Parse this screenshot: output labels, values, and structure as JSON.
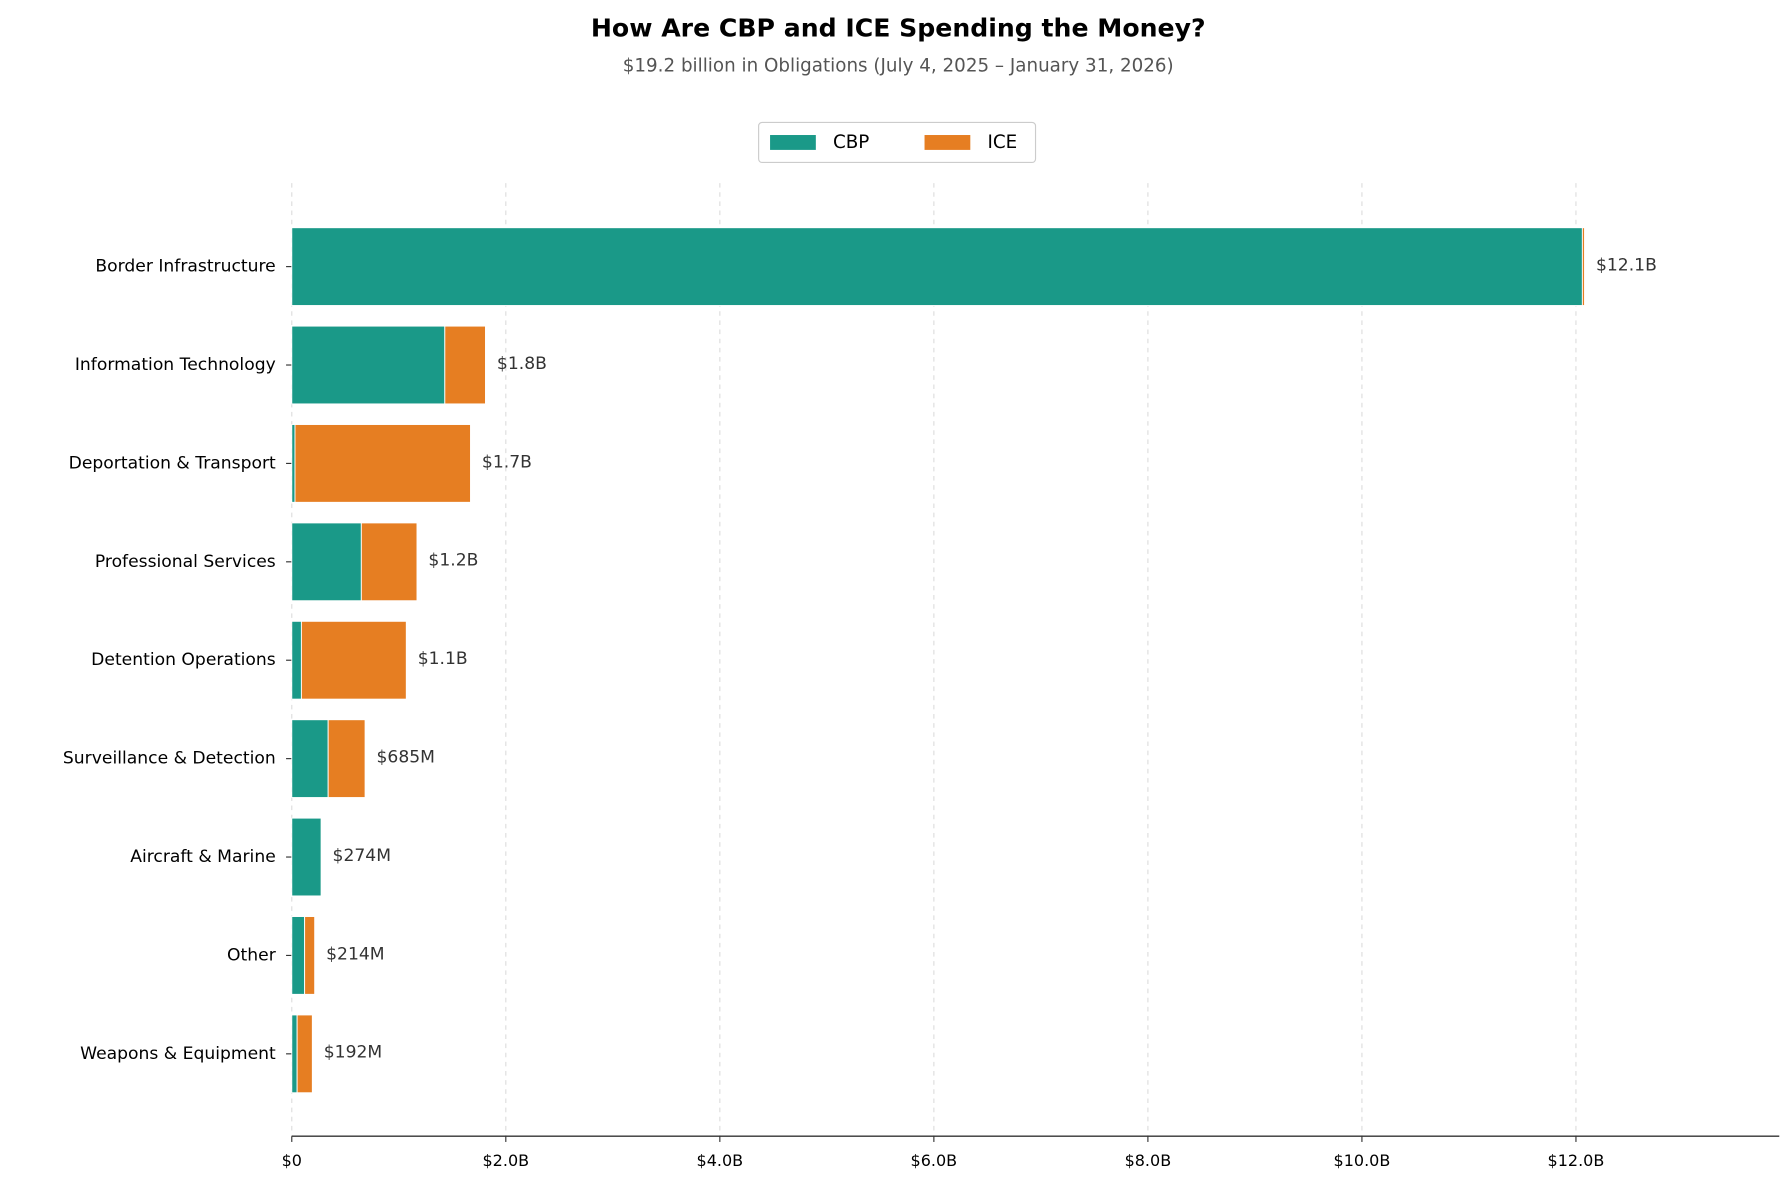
{
  "chart_data": {
    "type": "stacked-barh",
    "title": "How Are CBP and ICE Spending the Money?",
    "subtitle": "$19.2 billion in Obligations (July 4, 2025 – January 31, 2026)",
    "categories": [
      "Border Infrastructure",
      "Information Technology",
      "Deportation & Transport",
      "Professional Services",
      "Detention Operations",
      "Surveillance & Detection",
      "Aircraft & Marine",
      "Other",
      "Weapons & Equipment"
    ],
    "series": [
      {
        "name": "CBP",
        "color": "#1a9988",
        "values": [
          12.06,
          1.43,
          0.03,
          0.65,
          0.09,
          0.34,
          0.274,
          0.12,
          0.05
        ]
      },
      {
        "name": "ICE",
        "color": "#e67e22",
        "values": [
          0.02,
          0.38,
          1.64,
          0.52,
          0.98,
          0.345,
          0,
          0.094,
          0.142
        ]
      }
    ],
    "totals": {
      "values": [
        12.08,
        1.81,
        1.67,
        1.17,
        1.07,
        0.685,
        0.274,
        0.214,
        0.192
      ],
      "value_labels": [
        "$12.1B",
        "$1.8B",
        "$1.7B",
        "$1.2B",
        "$1.1B",
        "$685M",
        "$274M",
        "$214M",
        "$192M"
      ]
    },
    "xlim": [
      0,
      13.9
    ],
    "xticks": [
      {
        "value": 0,
        "label": "$0"
      },
      {
        "value": 2,
        "label": "$2.0B"
      },
      {
        "value": 4,
        "label": "$4.0B"
      },
      {
        "value": 6,
        "label": "$6.0B"
      },
      {
        "value": 8,
        "label": "$8.0B"
      },
      {
        "value": 10,
        "label": "$10.0B"
      },
      {
        "value": 12,
        "label": "$12.0B"
      }
    ],
    "grid": true,
    "legend": "top"
  }
}
